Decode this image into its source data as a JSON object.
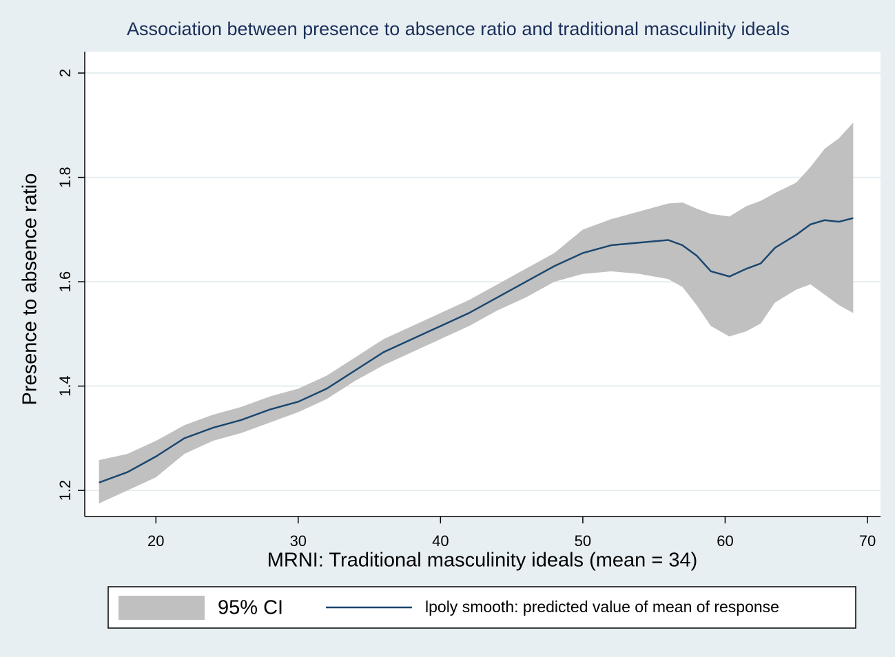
{
  "chart_data": {
    "type": "line",
    "title": "Association between presence to absence ratio and traditional masculinity ideals",
    "x_label": "MRNI: Traditional masculinity ideals (mean = 34)",
    "y_label": "Presence to absence ratio",
    "x": [
      16,
      18,
      20,
      22,
      24,
      26,
      28,
      30,
      32,
      34,
      36,
      38,
      40,
      42,
      44,
      46,
      48,
      50,
      52,
      54,
      56,
      57,
      58,
      59,
      60.3,
      61.5,
      62.5,
      63.5,
      65,
      66,
      67,
      68,
      69
    ],
    "series": [
      {
        "name": "95% CI",
        "color": "#c0c0c0",
        "lower": [
          1.175,
          1.2,
          1.225,
          1.27,
          1.295,
          1.31,
          1.33,
          1.35,
          1.375,
          1.41,
          1.44,
          1.465,
          1.49,
          1.515,
          1.545,
          1.57,
          1.6,
          1.615,
          1.62,
          1.615,
          1.605,
          1.59,
          1.555,
          1.515,
          1.495,
          1.505,
          1.52,
          1.56,
          1.585,
          1.595,
          1.575,
          1.555,
          1.54
        ],
        "upper": [
          1.258,
          1.27,
          1.295,
          1.325,
          1.345,
          1.36,
          1.38,
          1.395,
          1.42,
          1.455,
          1.49,
          1.515,
          1.54,
          1.565,
          1.595,
          1.625,
          1.655,
          1.7,
          1.72,
          1.735,
          1.75,
          1.752,
          1.74,
          1.73,
          1.725,
          1.745,
          1.755,
          1.77,
          1.79,
          1.82,
          1.855,
          1.875,
          1.905
        ]
      },
      {
        "name": "lpoly smooth: predicted value of mean of response",
        "color": "#1a476f",
        "values": [
          1.215,
          1.235,
          1.265,
          1.3,
          1.32,
          1.335,
          1.355,
          1.37,
          1.395,
          1.43,
          1.465,
          1.49,
          1.515,
          1.54,
          1.57,
          1.6,
          1.63,
          1.655,
          1.67,
          1.675,
          1.68,
          1.67,
          1.65,
          1.62,
          1.61,
          1.625,
          1.635,
          1.665,
          1.69,
          1.71,
          1.718,
          1.715,
          1.722
        ]
      }
    ],
    "xlim": [
      15,
      70.92
    ],
    "ylim": [
      1.15,
      2.041
    ],
    "xticks": [
      20,
      30,
      40,
      50,
      60,
      70
    ],
    "yticks": [
      1.2,
      1.4,
      1.6,
      1.8,
      2
    ],
    "grid": true
  }
}
